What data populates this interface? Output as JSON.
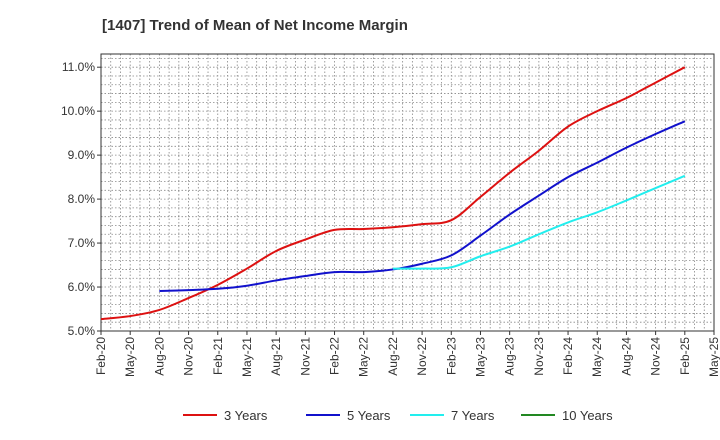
{
  "chart_data": {
    "type": "line",
    "title": "[1407]  Trend of Mean of Net Income Margin",
    "xlabel": "",
    "ylabel": "",
    "categories": [
      "Feb-20",
      "May-20",
      "Aug-20",
      "Nov-20",
      "Feb-21",
      "May-21",
      "Aug-21",
      "Nov-21",
      "Feb-22",
      "May-22",
      "Aug-22",
      "Nov-22",
      "Feb-23",
      "May-23",
      "Aug-23",
      "Nov-23",
      "Feb-24",
      "May-24",
      "Aug-24",
      "Nov-24",
      "Feb-25",
      "May-25"
    ],
    "y_ticks": [
      "5.0%",
      "6.0%",
      "7.0%",
      "8.0%",
      "9.0%",
      "10.0%",
      "11.0%"
    ],
    "ylim": [
      5.0,
      11.3
    ],
    "grid": true,
    "legend_position": "bottom",
    "series": [
      {
        "name": "3 Years",
        "color": "#dd1111",
        "values": [
          5.27,
          5.34,
          5.48,
          5.75,
          6.05,
          6.42,
          6.82,
          7.08,
          7.3,
          7.32,
          7.36,
          7.43,
          7.52,
          8.05,
          8.6,
          9.1,
          9.65,
          10.0,
          10.3,
          10.65,
          11.0,
          null
        ]
      },
      {
        "name": "5 Years",
        "color": "#1111cc",
        "values": [
          null,
          null,
          5.91,
          5.93,
          5.96,
          6.03,
          6.15,
          6.25,
          6.34,
          6.34,
          6.4,
          6.53,
          6.72,
          7.17,
          7.65,
          8.08,
          8.5,
          8.83,
          9.17,
          9.48,
          9.77,
          null
        ]
      },
      {
        "name": "7 Years",
        "color": "#22eeee",
        "values": [
          null,
          null,
          null,
          null,
          null,
          null,
          null,
          null,
          null,
          null,
          6.42,
          6.42,
          6.45,
          6.7,
          6.92,
          7.2,
          7.47,
          7.7,
          7.97,
          8.25,
          8.53,
          null
        ]
      },
      {
        "name": "10 Years",
        "color": "#228822",
        "values": [
          null,
          null,
          null,
          null,
          null,
          null,
          null,
          null,
          null,
          null,
          null,
          null,
          null,
          null,
          null,
          null,
          null,
          null,
          null,
          null,
          null,
          null
        ]
      }
    ]
  }
}
